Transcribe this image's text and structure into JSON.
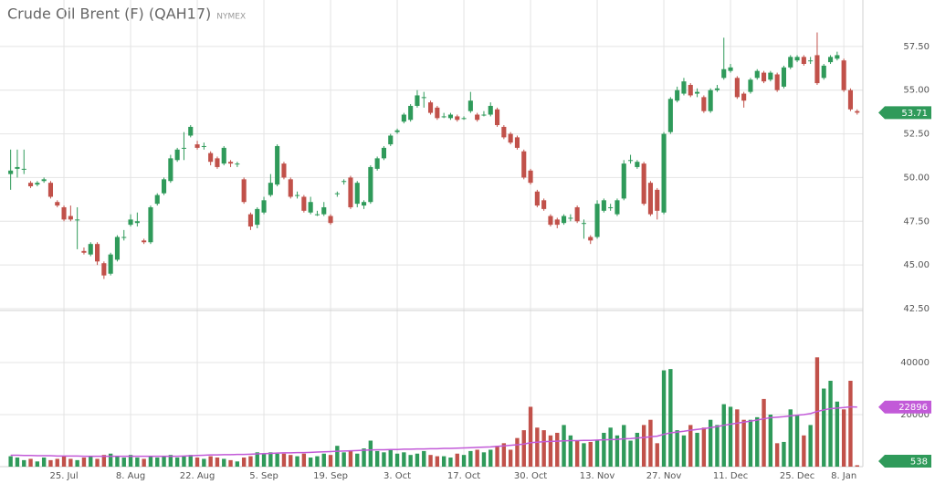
{
  "chart_data": [
    {
      "type": "candlestick",
      "title": "Crude Oil Brent (F) (QAH17)",
      "subtitle": "NYMEX",
      "up_color": "#2f9a5a",
      "down_color": "#c1514a",
      "categories": [
        null,
        null,
        null,
        null,
        null,
        null,
        null,
        null,
        "25. Jul",
        null,
        null,
        null,
        null,
        null,
        null,
        null,
        null,
        null,
        "8. Aug",
        null,
        null,
        null,
        null,
        null,
        null,
        null,
        null,
        null,
        "22. Aug",
        null,
        null,
        null,
        null,
        null,
        null,
        null,
        null,
        null,
        "5. Sep",
        null,
        null,
        null,
        null,
        null,
        null,
        null,
        null,
        null,
        "19. Sep",
        null,
        null,
        null,
        null,
        null,
        null,
        null,
        null,
        null,
        "3. Oct",
        null,
        null,
        null,
        null,
        null,
        null,
        null,
        null,
        null,
        "17. Oct",
        null,
        null,
        null,
        null,
        null,
        null,
        null,
        null,
        null,
        "30. Oct",
        null,
        null,
        null,
        null,
        null,
        null,
        null,
        null,
        null,
        "13. Nov",
        null,
        null,
        null,
        null,
        null,
        null,
        null,
        null,
        null,
        "27. Nov",
        null,
        null,
        null,
        null,
        null,
        null,
        null,
        null,
        null,
        "11. Dec",
        null,
        null,
        null,
        null,
        null,
        null,
        null,
        null,
        null,
        "25. Dec",
        null,
        null,
        null,
        null,
        null,
        null,
        "8. Jan",
        null,
        null
      ],
      "open": [
        50.2,
        50.5,
        50.5,
        49.7,
        49.6,
        49.8,
        49.7,
        48.6,
        48.3,
        47.8,
        47.6,
        45.8,
        45.6,
        46.2,
        45.1,
        44.5,
        45.3,
        46.6,
        47.3,
        47.4,
        46.4,
        46.3,
        48.5,
        49.1,
        49.8,
        51.0,
        51.7,
        52.4,
        51.9,
        51.8,
        51.4,
        51.1,
        50.8,
        50.9,
        50.8,
        49.9,
        47.9,
        47.3,
        48.0,
        49.0,
        49.6,
        50.8,
        49.9,
        49.0,
        48.9,
        48.0,
        47.9,
        47.9,
        47.8,
        49.1,
        49.8,
        50.0,
        48.5,
        48.4,
        48.6,
        50.5,
        51.1,
        51.9,
        52.6,
        53.2,
        53.3,
        54.1,
        54.6,
        54.3,
        54.0,
        53.5,
        53.4,
        53.5,
        53.4,
        53.8,
        53.6,
        53.6,
        53.6,
        53.9,
        52.9,
        52.5,
        52.3,
        51.5,
        50.4,
        49.2,
        48.7,
        47.8,
        47.6,
        47.4,
        47.7,
        48.3,
        47.4,
        46.6,
        46.6,
        48.1,
        48.3,
        47.9,
        48.8,
        51.0,
        50.6,
        50.8,
        49.7,
        49.3,
        48.0,
        52.6,
        54.4,
        54.8,
        55.3,
        54.8,
        54.6,
        53.8,
        55.0,
        55.7,
        56.1,
        55.7,
        54.8,
        54.9,
        55.7,
        56.0,
        55.6,
        55.9,
        55.2,
        56.3,
        56.7,
        56.9,
        56.7,
        57.0,
        55.7,
        56.6,
        56.8,
        56.7,
        55.0,
        53.8
      ],
      "high": [
        51.6,
        51.6,
        51.6,
        49.8,
        49.8,
        50.0,
        49.8,
        48.7,
        48.4,
        48.4,
        48.3,
        46.0,
        46.3,
        46.3,
        45.2,
        45.7,
        46.7,
        47.0,
        47.9,
        48.0,
        46.5,
        48.4,
        49.1,
        50.0,
        51.3,
        51.7,
        52.6,
        53.0,
        52.1,
        52.0,
        51.5,
        51.2,
        51.8,
        51.0,
        50.9,
        50.0,
        48.0,
        48.3,
        48.9,
        50.2,
        51.9,
        50.9,
        50.0,
        49.2,
        49.0,
        48.9,
        48.1,
        48.6,
        47.9,
        49.2,
        49.9,
        50.1,
        49.8,
        48.7,
        50.7,
        51.2,
        51.8,
        52.5,
        52.8,
        53.7,
        54.2,
        55.0,
        54.9,
        54.4,
        54.1,
        53.7,
        53.7,
        53.6,
        53.5,
        54.9,
        53.7,
        53.8,
        54.3,
        54.0,
        53.0,
        52.6,
        52.4,
        51.6,
        50.5,
        49.3,
        48.8,
        47.9,
        47.7,
        47.9,
        47.9,
        48.4,
        47.6,
        46.7,
        48.7,
        48.8,
        48.5,
        48.8,
        51.0,
        51.3,
        51.0,
        50.9,
        49.8,
        49.4,
        52.6,
        54.6,
        55.2,
        55.7,
        55.4,
        55.1,
        54.7,
        55.1,
        55.3,
        58.0,
        56.5,
        55.8,
        54.9,
        55.7,
        56.2,
        56.1,
        56.1,
        56.0,
        56.4,
        57.0,
        57.0,
        57.0,
        56.9,
        58.3,
        56.5,
        57.0,
        57.2,
        56.8,
        55.1,
        53.9
      ],
      "low": [
        49.3,
        50.0,
        50.2,
        49.4,
        49.5,
        49.7,
        48.8,
        48.3,
        47.5,
        47.5,
        45.9,
        45.6,
        45.5,
        45.0,
        44.2,
        44.4,
        45.2,
        46.4,
        47.2,
        47.2,
        46.2,
        46.2,
        48.4,
        49.0,
        49.7,
        50.9,
        51.0,
        52.3,
        51.6,
        51.6,
        50.7,
        50.5,
        50.7,
        50.6,
        50.6,
        48.5,
        47.0,
        47.1,
        47.9,
        48.9,
        49.5,
        49.9,
        48.8,
        48.8,
        48.0,
        47.9,
        47.8,
        47.8,
        47.3,
        48.9,
        49.6,
        48.2,
        48.3,
        48.2,
        48.5,
        50.4,
        51.0,
        51.8,
        52.5,
        53.1,
        53.2,
        54.0,
        54.0,
        53.6,
        53.3,
        53.4,
        53.3,
        53.2,
        53.3,
        53.7,
        53.2,
        53.5,
        53.5,
        52.9,
        52.2,
        51.9,
        51.6,
        49.9,
        49.6,
        48.3,
        48.1,
        47.2,
        47.1,
        47.3,
        47.5,
        47.4,
        46.5,
        46.2,
        46.5,
        48.0,
        48.1,
        47.8,
        48.7,
        50.8,
        50.5,
        48.4,
        47.8,
        47.6,
        47.9,
        52.5,
        54.3,
        54.7,
        54.6,
        54.6,
        53.7,
        53.7,
        54.9,
        55.6,
        56.0,
        54.5,
        54.0,
        54.8,
        55.6,
        55.4,
        55.5,
        54.9,
        55.1,
        56.2,
        56.6,
        56.4,
        56.5,
        55.3,
        55.6,
        56.5,
        56.7,
        54.9,
        53.8,
        53.6
      ],
      "close": [
        50.4,
        50.6,
        50.5,
        49.5,
        49.7,
        49.9,
        48.9,
        48.4,
        47.6,
        47.6,
        47.6,
        45.7,
        46.2,
        45.2,
        44.4,
        45.6,
        46.6,
        46.6,
        47.6,
        47.5,
        46.3,
        48.3,
        49.0,
        49.9,
        51.1,
        51.6,
        51.7,
        52.9,
        51.7,
        51.8,
        50.9,
        50.6,
        51.7,
        50.8,
        50.8,
        48.6,
        47.2,
        48.2,
        48.7,
        49.7,
        51.8,
        50.0,
        48.9,
        49.0,
        48.1,
        48.6,
        47.9,
        48.3,
        47.4,
        49.1,
        49.8,
        48.3,
        49.7,
        48.6,
        50.6,
        51.1,
        51.7,
        52.4,
        52.7,
        53.6,
        54.1,
        54.7,
        54.6,
        53.7,
        53.4,
        53.5,
        53.6,
        53.3,
        53.4,
        54.4,
        53.3,
        53.6,
        54.1,
        53.0,
        52.3,
        52.0,
        51.7,
        50.0,
        49.7,
        48.4,
        48.2,
        47.3,
        47.3,
        47.8,
        47.7,
        47.5,
        47.4,
        46.4,
        48.5,
        48.7,
        48.3,
        48.7,
        50.8,
        51.0,
        50.9,
        48.5,
        47.9,
        48.1,
        52.5,
        54.5,
        55.0,
        55.5,
        54.7,
        54.9,
        53.8,
        55.0,
        55.1,
        56.2,
        56.3,
        54.6,
        54.4,
        55.6,
        56.1,
        55.5,
        56.0,
        55.0,
        56.3,
        56.9,
        56.9,
        56.5,
        56.7,
        55.4,
        56.4,
        56.9,
        57.0,
        55.0,
        53.9,
        53.71
      ],
      "ylim": [
        42.5,
        60
      ],
      "yticks": [
        {
          "value": 42.5,
          "label": "42.50"
        },
        {
          "value": 45,
          "label": "45.00"
        },
        {
          "value": 47.5,
          "label": "47.50"
        },
        {
          "value": 50,
          "label": "50.00"
        },
        {
          "value": 52.5,
          "label": "52.50"
        },
        {
          "value": 55,
          "label": "55.00"
        },
        {
          "value": 57.5,
          "label": "57.50"
        }
      ],
      "grid": true
    },
    {
      "type": "bar",
      "values": [
        4000,
        3500,
        2500,
        3000,
        2000,
        3500,
        2500,
        3000,
        4000,
        3000,
        2500,
        3500,
        4000,
        3000,
        4500,
        5000,
        4000,
        3500,
        4500,
        3500,
        3000,
        4000,
        3500,
        4000,
        4500,
        3500,
        4000,
        4500,
        3500,
        3000,
        4000,
        3500,
        3000,
        2500,
        2000,
        3500,
        4000,
        5500,
        5000,
        5500,
        5000,
        5000,
        4500,
        4000,
        5000,
        3500,
        4000,
        5000,
        4500,
        8000,
        5500,
        6000,
        5000,
        7000,
        10000,
        6000,
        5500,
        6500,
        5000,
        5500,
        4500,
        5000,
        6000,
        4500,
        4000,
        4000,
        3500,
        5000,
        4500,
        6000,
        6500,
        5500,
        6500,
        8000,
        9000,
        6500,
        11000,
        14000,
        23000,
        15000,
        14000,
        12000,
        13000,
        16000,
        12000,
        10000,
        9000,
        9500,
        10000,
        13000,
        15000,
        12000,
        16000,
        10000,
        13000,
        16000,
        18000,
        9000,
        37000,
        37500,
        14000,
        12000,
        16000,
        13000,
        15000,
        18000,
        16000,
        24000,
        23000,
        22000,
        18000,
        18000,
        19000,
        26000,
        20000,
        9000,
        9500,
        22000,
        20000,
        12000,
        16000,
        42000,
        30000,
        33000,
        25000,
        22000,
        33000,
        538
      ],
      "line_values": [
        4400,
        4400,
        4300,
        4300,
        4200,
        4200,
        4200,
        4100,
        4100,
        4100,
        4100,
        4000,
        4000,
        4000,
        4000,
        4000,
        4000,
        4000,
        4000,
        4000,
        4000,
        4000,
        4000,
        4000,
        4000,
        4000,
        4100,
        4200,
        4300,
        4400,
        4500,
        4500,
        4600,
        4600,
        4700,
        4700,
        4800,
        4900,
        5000,
        5100,
        5200,
        5300,
        5300,
        5400,
        5400,
        5500,
        5600,
        5700,
        5800,
        5900,
        6000,
        6100,
        6200,
        6300,
        6400,
        6500,
        6500,
        6600,
        6600,
        6700,
        6700,
        6800,
        6800,
        6900,
        6900,
        7000,
        7000,
        7100,
        7200,
        7300,
        7400,
        7500,
        7600,
        7800,
        8000,
        8200,
        8400,
        8700,
        9200,
        9400,
        9600,
        9700,
        9800,
        9900,
        10000,
        10000,
        10100,
        10100,
        10200,
        10300,
        10400,
        10500,
        10700,
        10800,
        11000,
        11200,
        11500,
        11700,
        12400,
        13000,
        13300,
        13600,
        14000,
        14300,
        14600,
        15000,
        15400,
        15900,
        16300,
        16700,
        17100,
        17500,
        17900,
        18400,
        18800,
        19000,
        19200,
        19500,
        19800,
        20000,
        20400,
        21200,
        21800,
        22300,
        22500,
        22700,
        23000,
        22896
      ],
      "line_color": "#c25ad8",
      "ylim": [
        0,
        60000
      ],
      "yticks": [
        20000,
        40000
      ],
      "grid": true
    }
  ]
}
